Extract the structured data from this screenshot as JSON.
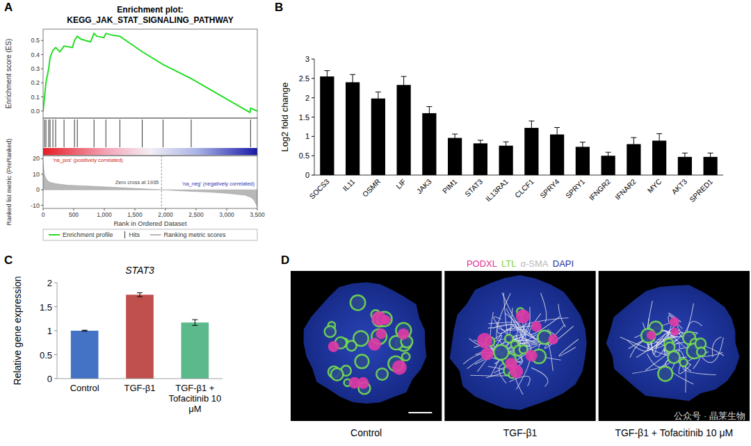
{
  "chart_data": [
    {
      "panel": "A",
      "type": "gsea",
      "title": "Enrichment plot:",
      "subtitle": "KEGG_JAK_STAT_SIGNALING_PATHWAY",
      "x_label": "Rank in Ordered Dataset",
      "y_label": "Enrichment score (ES)",
      "y2_label": "Ranked list metric (PreRanked)",
      "xlim": [
        0,
        3500
      ],
      "xticks": [
        0,
        500,
        {
          "value": 1000,
          "label": "1,000"
        },
        {
          "value": 1500,
          "label": "1,500"
        },
        {
          "value": 2000,
          "label": "2,000"
        },
        {
          "value": 2500,
          "label": "2,500"
        },
        {
          "value": 3000,
          "label": "3,000"
        },
        {
          "value": 3500,
          "label": "3,500"
        }
      ],
      "ylim": [
        -0.05,
        0.58
      ],
      "yticks": [
        {
          "value": 0,
          "label": "0.0"
        },
        0.1,
        0.2,
        0.3,
        0.4,
        0.5
      ],
      "y2lim": [
        -12,
        22
      ],
      "y2ticks": [
        -10,
        0,
        10,
        20
      ],
      "series": [
        {
          "name": "Enrichment profile",
          "color": "#22dd22",
          "type": "line",
          "x": [
            0,
            23,
            46,
            91,
            114,
            160,
            205,
            274,
            342,
            479,
            513,
            559,
            616,
            775,
            832,
            878,
            992,
            1026,
            1106,
            1254,
            1620,
            1960,
            2420,
            3380,
            3390,
            3500
          ],
          "values": [
            0,
            0.1,
            0.2,
            0.3,
            0.38,
            0.43,
            0.45,
            0.42,
            0.46,
            0.45,
            0.5,
            0.53,
            0.51,
            0.49,
            0.55,
            0.53,
            0.52,
            0.55,
            0.54,
            0.53,
            0.42,
            0.33,
            0.23,
            -0.01,
            0.02,
            0.0
          ]
        },
        {
          "name": "Ranking metric scores",
          "color": "#b8b8b8",
          "type": "area",
          "axis": "y2",
          "x": [
            0,
            20,
            50,
            100,
            200,
            400,
            800,
            1200,
            1600,
            1935,
            2300,
            2700,
            3000,
            3300,
            3400,
            3450,
            3500
          ],
          "values": [
            18,
            10,
            7,
            5,
            4,
            3,
            2.3,
            1.5,
            0.7,
            0,
            -0.8,
            -1.5,
            -2.3,
            -3.5,
            -5,
            -7,
            -11
          ]
        }
      ],
      "hits": {
        "name": "Hits",
        "color": "#333333",
        "x": [
          23,
          46,
          91,
          114,
          160,
          205,
          342,
          513,
          559,
          832,
          1026,
          1254,
          1620,
          1960,
          2420,
          3390
        ]
      },
      "annotations": [
        {
          "text": "'na_pos' (positively correlated)",
          "color": "#cc2222"
        },
        {
          "text": "'na_neg' (negatively correlated)",
          "color": "#3333aa"
        },
        {
          "text": "Zero cross at 1935",
          "x": 1935
        }
      ],
      "legend": "bottom"
    },
    {
      "panel": "B",
      "type": "bar",
      "y_label": "Log2 fold change",
      "color": "#000000",
      "categories": [
        "SOCS3",
        "IL11",
        "OSMR",
        "LIF",
        "JAK3",
        "PIM1",
        "STAT3",
        "IL13RA1",
        "CLCF1",
        "SPRY4",
        "SPRY1",
        "IFNGR2",
        "IFNAR2",
        "MYC",
        "AKT3",
        "SPRED1"
      ],
      "values": [
        2.55,
        2.4,
        1.98,
        2.33,
        1.6,
        0.96,
        0.82,
        0.76,
        1.22,
        1.05,
        0.73,
        0.5,
        0.8,
        0.89,
        0.47,
        0.47
      ],
      "errors": [
        0.15,
        0.2,
        0.17,
        0.22,
        0.17,
        0.1,
        0.08,
        0.1,
        0.18,
        0.18,
        0.12,
        0.09,
        0.17,
        0.18,
        0.1,
        0.1
      ],
      "ylim": [
        0,
        3
      ],
      "yticks": [
        0,
        0.5,
        1,
        1.5,
        2,
        2.5,
        3
      ],
      "grid": false
    },
    {
      "panel": "C",
      "type": "bar",
      "title": "STAT3",
      "y_label": "Relative gene expression",
      "categories": [
        "Control",
        "TGF-β1",
        "TGF-β1 + Tofacitinib 10 μM"
      ],
      "values": [
        1,
        1.75,
        1.17
      ],
      "errors": [
        0.01,
        0.04,
        0.06
      ],
      "colors": [
        "#4472c4",
        "#c0504d",
        "#5bb98c"
      ],
      "ylim": [
        0,
        2
      ],
      "yticks": [
        0,
        0.5,
        1,
        1.5,
        2
      ],
      "grid": false
    },
    {
      "panel": "D",
      "type": "image",
      "title_parts": [
        {
          "text": "PODXL",
          "color": "#e0309c"
        },
        {
          "text": "LTL",
          "color": "#7ad23c"
        },
        {
          "text": "α-SMA",
          "color": "#b8b8b8"
        },
        {
          "text": "DAPI",
          "color": "#1f2f9a"
        }
      ],
      "captions": [
        "Control",
        "TGF-β1",
        "TGF-β1 + Tofacitinib 10 μM"
      ]
    }
  ],
  "watermark": "公众号 · 晶莱生物"
}
